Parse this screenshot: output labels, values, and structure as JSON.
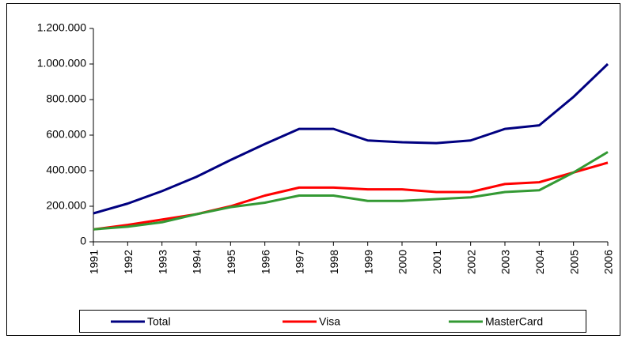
{
  "chart_data": {
    "type": "line",
    "categories": [
      "1991",
      "1992",
      "1993",
      "1994",
      "1995",
      "1996",
      "1997",
      "1998",
      "1999",
      "2000",
      "2001",
      "2002",
      "2003",
      "2004",
      "2005",
      "2006"
    ],
    "series": [
      {
        "name": "Total",
        "color": "#000080",
        "values": [
          160000,
          215000,
          285000,
          365000,
          460000,
          550000,
          635000,
          635000,
          570000,
          560000,
          555000,
          570000,
          635000,
          655000,
          815000,
          1000000
        ]
      },
      {
        "name": "Visa",
        "color": "#ff0000",
        "values": [
          70000,
          95000,
          125000,
          155000,
          200000,
          260000,
          305000,
          305000,
          295000,
          295000,
          280000,
          280000,
          325000,
          335000,
          390000,
          445000
        ]
      },
      {
        "name": "MasterCard",
        "color": "#339933",
        "values": [
          70000,
          85000,
          110000,
          155000,
          195000,
          220000,
          260000,
          260000,
          230000,
          230000,
          240000,
          250000,
          280000,
          290000,
          390000,
          505000
        ]
      }
    ],
    "ylim": [
      0,
      1200000
    ],
    "yticks": [
      0,
      {
        "value": 200000,
        "label": "200.000"
      },
      {
        "value": 400000,
        "label": "400.000"
      },
      {
        "value": 600000,
        "label": "600.000"
      },
      {
        "value": 800000,
        "label": "800.000"
      },
      {
        "value": 1000000,
        "label": "1.000.000"
      },
      {
        "value": 1200000,
        "label": "1.200.000"
      }
    ],
    "grid": false,
    "legend": "bottom"
  }
}
